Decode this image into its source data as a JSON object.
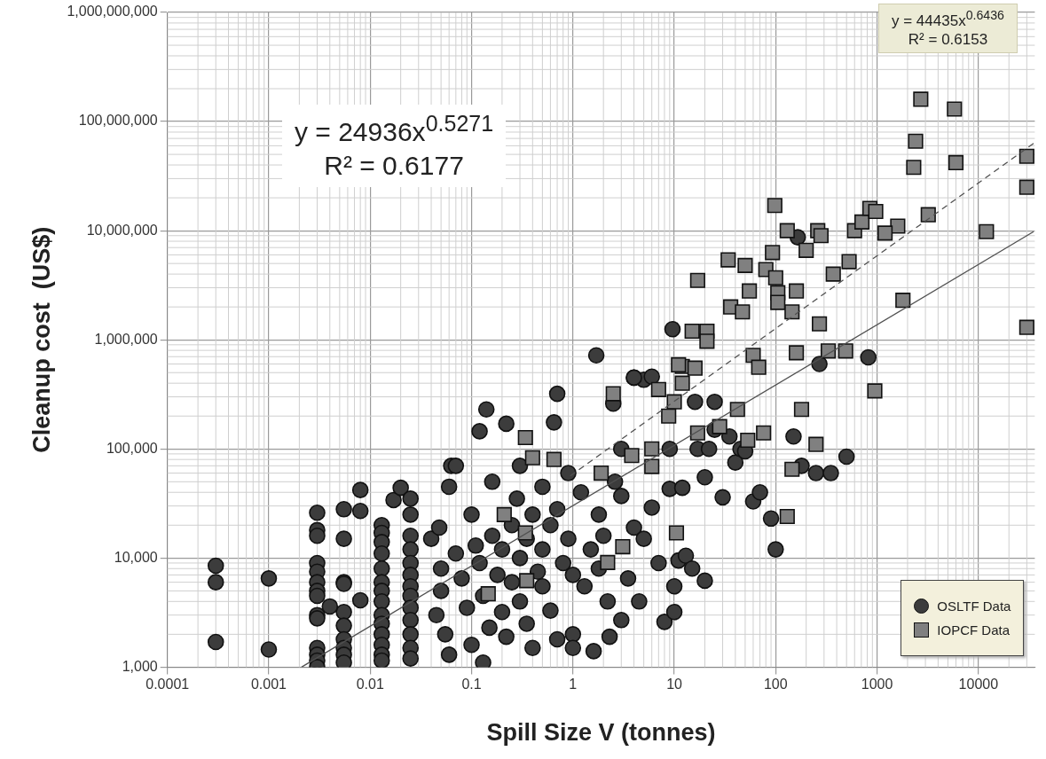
{
  "chart_data": {
    "type": "scatter",
    "xlabel": "Spill Size V (tonnes)",
    "ylabel": "Cleanup cost  (US$)",
    "log": "xy",
    "grid": true,
    "legend": "bottom right",
    "xlim": [
      0.0001,
      36000
    ],
    "xticks": [
      0.0001,
      0.001,
      0.01,
      0.1,
      1,
      10,
      100,
      1000,
      10000
    ],
    "ylim": [
      1000,
      1000000000
    ],
    "yticks": [
      {
        "value": 1000,
        "label": "1,000"
      },
      {
        "value": 10000,
        "label": "10,000"
      },
      {
        "value": 100000,
        "label": "100,000"
      },
      {
        "value": 1000000,
        "label": "1,000,000"
      },
      {
        "value": 10000000,
        "label": "10,000,000"
      },
      {
        "value": 100000000,
        "label": "100,000,000"
      },
      {
        "value": 1000000000,
        "label": "1,000,000,000"
      }
    ],
    "annotations": [
      "y = 24936x$^{0.5271}$\nR² = 0.6177",
      "y = 44435x$^{0.6436}$\nR² = 0.6153"
    ],
    "series": [
      {
        "name": "OSLTF Data",
        "color": "#3c3c3c",
        "marker": "circle",
        "x": [
          0.0003,
          0.0003,
          0.0003,
          0.001,
          0.001,
          0.003,
          0.003,
          0.003,
          0.003,
          0.003,
          0.003,
          0.003,
          0.003,
          0.003,
          0.003,
          0.003,
          0.003,
          0.003,
          0.003,
          0.0055,
          0.0055,
          0.0055,
          0.0055,
          0.0055,
          0.0055,
          0.0055,
          0.0055,
          0.0055,
          0.0055,
          0.004,
          0.008,
          0.008,
          0.008,
          0.013,
          0.013,
          0.013,
          0.013,
          0.013,
          0.013,
          0.013,
          0.013,
          0.013,
          0.013,
          0.013,
          0.013,
          0.013,
          0.013,
          0.017,
          0.02,
          0.025,
          0.025,
          0.025,
          0.025,
          0.025,
          0.025,
          0.025,
          0.025,
          0.025,
          0.025,
          0.025,
          0.025,
          0.025,
          0.04,
          0.048,
          0.063,
          0.07,
          0.06,
          0.05,
          0.05,
          0.045,
          0.055,
          0.06,
          0.07,
          0.08,
          0.09,
          0.1,
          0.1,
          0.11,
          0.12,
          0.14,
          0.12,
          0.13,
          0.15,
          0.13,
          0.16,
          0.16,
          0.18,
          0.2,
          0.2,
          0.22,
          0.22,
          0.25,
          0.25,
          0.28,
          0.3,
          0.3,
          0.3,
          0.35,
          0.35,
          0.4,
          0.4,
          0.45,
          0.5,
          0.5,
          0.5,
          0.6,
          0.6,
          0.65,
          0.7,
          0.7,
          0.7,
          0.8,
          0.9,
          0.9,
          1,
          1,
          1,
          1.2,
          1.3,
          1.5,
          1.6,
          1.7,
          1.8,
          1.8,
          2,
          2.2,
          2.5,
          2.3,
          2.6,
          3,
          3,
          3,
          3.5,
          4,
          4,
          4.5,
          5,
          5,
          6,
          6,
          7,
          8,
          9,
          9,
          10,
          10,
          11,
          12,
          13,
          15,
          9.6,
          17,
          20,
          20,
          22,
          25,
          25,
          30,
          35,
          40,
          45,
          50,
          60,
          70,
          90,
          100,
          150,
          180,
          250,
          165,
          350,
          270,
          500,
          820,
          4,
          16
        ],
        "values": [
          8500,
          6000,
          1700,
          6500,
          1450,
          26000,
          18000,
          16000,
          9000,
          7500,
          6000,
          5000,
          4500,
          3000,
          2800,
          1500,
          1300,
          1150,
          1000,
          28000,
          15000,
          6000,
          5800,
          3200,
          2400,
          1800,
          1500,
          1300,
          1100,
          3600,
          42000,
          27000,
          4100,
          20000,
          17000,
          14000,
          11000,
          8000,
          6000,
          5000,
          4000,
          3000,
          2500,
          2000,
          1600,
          1300,
          1150,
          34000,
          44000,
          35000,
          25000,
          16000,
          12000,
          9000,
          7000,
          5500,
          4500,
          3500,
          2700,
          2000,
          1500,
          1200,
          15000,
          19000,
          70000,
          70000,
          45000,
          8000,
          5000,
          3000,
          2000,
          1300,
          11000,
          6500,
          3500,
          1600,
          25000,
          13000,
          145000,
          230000,
          9000,
          4500,
          2300,
          1100,
          50000,
          16000,
          7000,
          12000,
          3200,
          170000,
          1900,
          20000,
          6000,
          35000,
          70000,
          10000,
          4000,
          2500,
          15000,
          25000,
          1500,
          7500,
          5500,
          12000,
          45000,
          3300,
          20000,
          175000,
          320000,
          28000,
          1800,
          9000,
          60000,
          15000,
          2000,
          7000,
          1500,
          40000,
          5500,
          12000,
          1400,
          720000,
          25000,
          8000,
          16000,
          4000,
          260000,
          1900,
          50000,
          100000,
          37000,
          2700,
          6500,
          450000,
          19000,
          4000,
          430000,
          15000,
          460000,
          29000,
          9000,
          2600,
          100000,
          43000,
          5500,
          3200,
          9500,
          44000,
          10500,
          8000,
          1250000,
          100000,
          6200,
          55000,
          100000,
          270000,
          150000,
          36000,
          130000,
          75000,
          100000,
          95000,
          33000,
          40000,
          23000,
          12000,
          130000,
          70000,
          60000,
          8700000,
          60000,
          600000,
          85000,
          690000,
          450000,
          270000
        ]
      },
      {
        "name": "IOPCF Data",
        "color": "#808080",
        "marker": "square",
        "x": [
          2700,
          5800,
          2400,
          2300,
          6000,
          30000,
          30000,
          3200,
          12000,
          30000,
          1800,
          98,
          130,
          260,
          280,
          200,
          600,
          710,
          850,
          970,
          1600,
          1200,
          34,
          17,
          50,
          93,
          80,
          100,
          55,
          105,
          160,
          36,
          47,
          105,
          145,
          370,
          530,
          270,
          15,
          21,
          21,
          60,
          68,
          160,
          330,
          490,
          950,
          12,
          12,
          7,
          10,
          42,
          180,
          28,
          17,
          76,
          53,
          250,
          145,
          130,
          2.5,
          11,
          16,
          8.8,
          6,
          3.8,
          6,
          1.9,
          0.65,
          0.4,
          0.34,
          0.21,
          0.34,
          10.5,
          3.1,
          2.2,
          0.35,
          0.146
        ],
        "values": [
          160000000,
          130000000,
          66000000,
          38000000,
          42000000,
          48000000,
          25000000,
          14000000,
          9800000,
          1300000,
          2300000,
          17000000,
          10000000,
          10000000,
          9000000,
          6600000,
          10000000,
          12000000,
          16000000,
          15000000,
          11000000,
          9500000,
          5400000,
          3500000,
          4800000,
          6300000,
          4400000,
          3700000,
          2800000,
          2700000,
          2800000,
          2000000,
          1800000,
          2200000,
          1800000,
          4000000,
          5200000,
          1400000,
          1200000,
          1200000,
          970000,
          720000,
          560000,
          760000,
          790000,
          790000,
          340000,
          570000,
          400000,
          350000,
          270000,
          230000,
          230000,
          160000,
          140000,
          140000,
          120000,
          110000,
          65000,
          24000,
          320000,
          590000,
          550000,
          200000,
          100000,
          87000,
          69000,
          60000,
          80000,
          83000,
          127000,
          25000,
          17000,
          17000,
          12700,
          9100,
          6200,
          4700
        ]
      },
      {
        "type": "line",
        "color": "#505050",
        "marker": "none",
        "line_style": "solid",
        "x": [
          0.0021,
          35000
        ],
        "values": [
          1000,
          9800000
        ]
      },
      {
        "type": "line",
        "color": "#505050",
        "marker": "none",
        "line_style": "dashed",
        "x": [
          35000,
          0.88
        ],
        "values": [
          63000000,
          54000
        ]
      }
    ]
  }
}
